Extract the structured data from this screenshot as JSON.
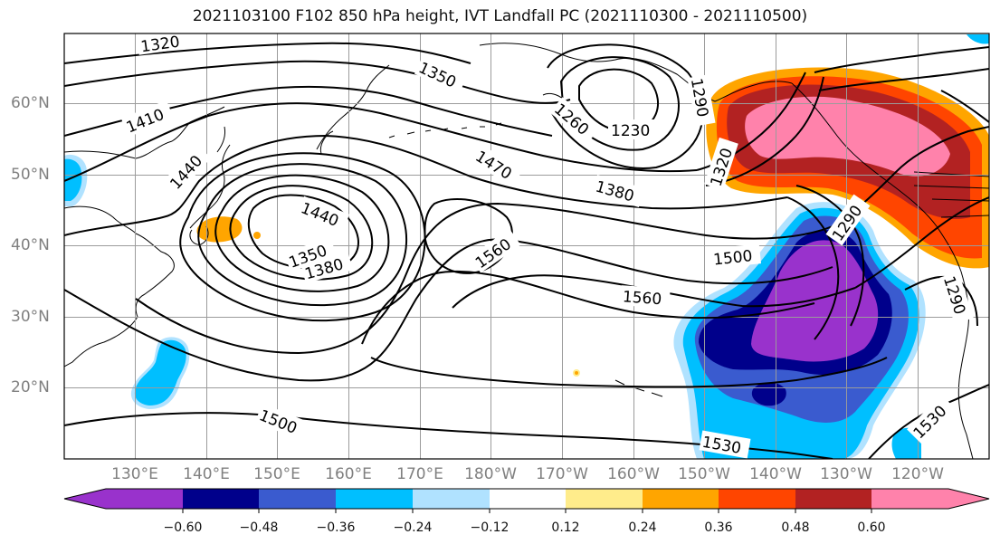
{
  "title": "2021103100 F102 850 hPa height, IVT Landfall PC (2021110300 - 2021110500)",
  "lon_labels": [
    "130°E",
    "140°E",
    "150°E",
    "160°E",
    "170°E",
    "180°W",
    "170°W",
    "160°W",
    "150°W",
    "140°W",
    "130°W",
    "120°W"
  ],
  "lat_labels": [
    "60°N",
    "50°N",
    "40°N",
    "30°N",
    "20°N"
  ],
  "contour_labels": [
    "1320",
    "1350",
    "1410",
    "1440",
    "1260",
    "1230",
    "1290",
    "1470",
    "1380",
    "1320",
    "1440",
    "1350",
    "1380",
    "1560",
    "1500",
    "1560",
    "1290",
    "1500",
    "1530",
    "1530",
    "1290"
  ],
  "colorbar": {
    "ticks": [
      "−0.60",
      "−0.48",
      "−0.36",
      "−0.24",
      "−0.12",
      "0.12",
      "0.24",
      "0.36",
      "0.48",
      "0.60"
    ],
    "colors": [
      "#9932CC",
      "#00008B",
      "#3A5BCF",
      "#00BFFF",
      "#B0E2FF",
      "#FFFFFF",
      "#FFEC8B",
      "#FFA500",
      "#FF4500",
      "#B22222",
      "#FF82AB"
    ]
  },
  "fill_colors": {
    "purple": "#9932CC",
    "navy": "#00008B",
    "blue": "#3A5BCF",
    "skyblue": "#00BFFF",
    "lightblue": "#B0E2FF",
    "yellow": "#FFEC8B",
    "orange": "#FFA500",
    "redorange": "#FF4500",
    "firebrick": "#B22222",
    "pink": "#FF82AB"
  }
}
